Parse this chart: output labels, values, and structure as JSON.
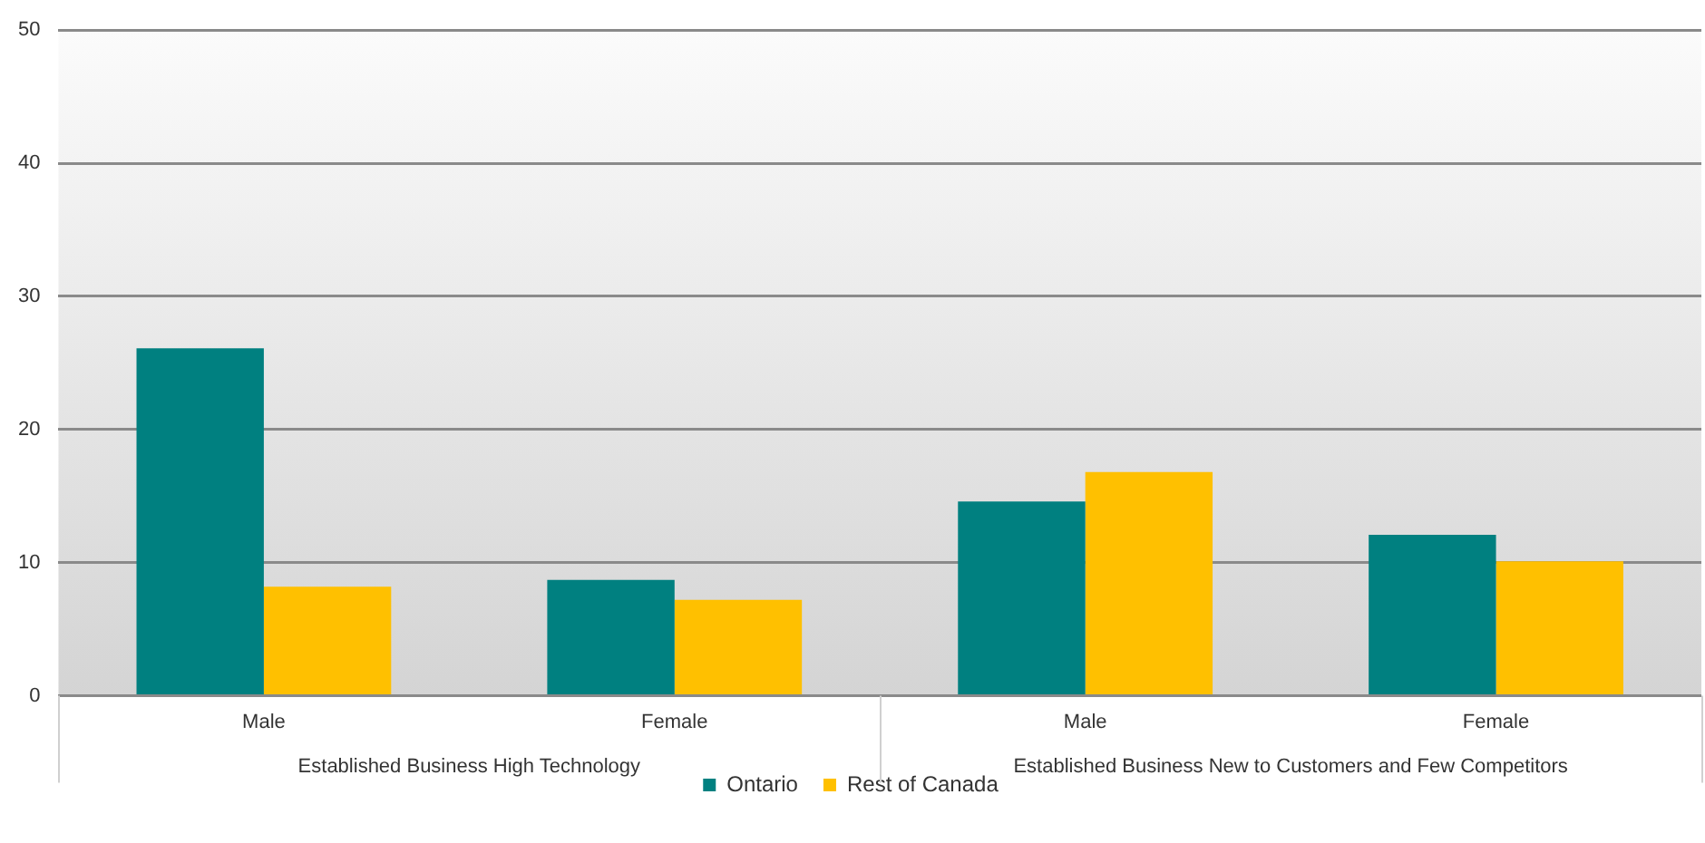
{
  "chart_data": {
    "type": "bar",
    "categories": [
      "Male",
      "Female",
      "Male",
      "Female"
    ],
    "series": [
      {
        "name": "Ontario",
        "color": "#008080",
        "values": [
          26.1,
          8.7,
          14.6,
          12.1
        ]
      },
      {
        "name": "Rest of Canada",
        "color": "#ffc000",
        "values": [
          8.2,
          7.2,
          16.8,
          10.1
        ]
      }
    ],
    "annotations": [
      "Established Business High Technology",
      "Established Business New to Customers and Few Competitors"
    ],
    "ylim": [
      0,
      50
    ],
    "yticks": [
      0,
      10,
      20,
      30,
      40,
      50
    ],
    "grid": "y",
    "legend": "bottom"
  }
}
